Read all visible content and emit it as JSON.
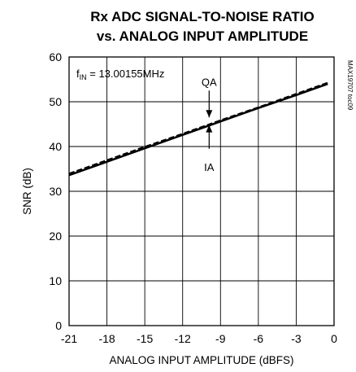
{
  "chart_data": {
    "type": "line",
    "title_line1": "Rx ADC SIGNAL-TO-NOISE RATIO",
    "title_line2": "vs. ANALOG INPUT AMPLITUDE",
    "xlabel": "ANALOG INPUT AMPLITUDE (dBFS)",
    "ylabel": "SNR (dB)",
    "xlim": [
      -21,
      0
    ],
    "ylim": [
      0,
      60
    ],
    "x_ticks": [
      "-21",
      "-18",
      "-15",
      "-12",
      "-9",
      "-6",
      "-3",
      "0"
    ],
    "y_ticks": [
      "0",
      "10",
      "20",
      "30",
      "40",
      "50",
      "60"
    ],
    "grid": true,
    "annotation_prefix": "f",
    "annotation_sub": "IN",
    "annotation_value": " = 13.00155MHz",
    "side_label": "MAX19707 toc09",
    "series": [
      {
        "name": "QA",
        "style": "dashed",
        "x": [
          -21,
          -18,
          -15,
          -12,
          -9,
          -6,
          -3,
          -0.5
        ],
        "y": [
          33.9,
          36.9,
          39.9,
          42.8,
          45.8,
          48.7,
          51.7,
          54.2
        ]
      },
      {
        "name": "IA",
        "style": "solid",
        "x": [
          -21,
          -18,
          -15,
          -12,
          -9,
          -6,
          -3,
          -0.5
        ],
        "y": [
          33.6,
          36.6,
          39.6,
          42.6,
          45.6,
          48.6,
          51.5,
          54.0
        ]
      }
    ],
    "labels": [
      {
        "text": "QA",
        "x": -9.9,
        "y": 54.5,
        "arrow_to_y": 46.5,
        "arrow_from_y": 52.5
      },
      {
        "text": "IA",
        "x": -9.9,
        "y": 35.5,
        "arrow_to_y": 44.8,
        "arrow_from_y": 39.5
      }
    ]
  }
}
